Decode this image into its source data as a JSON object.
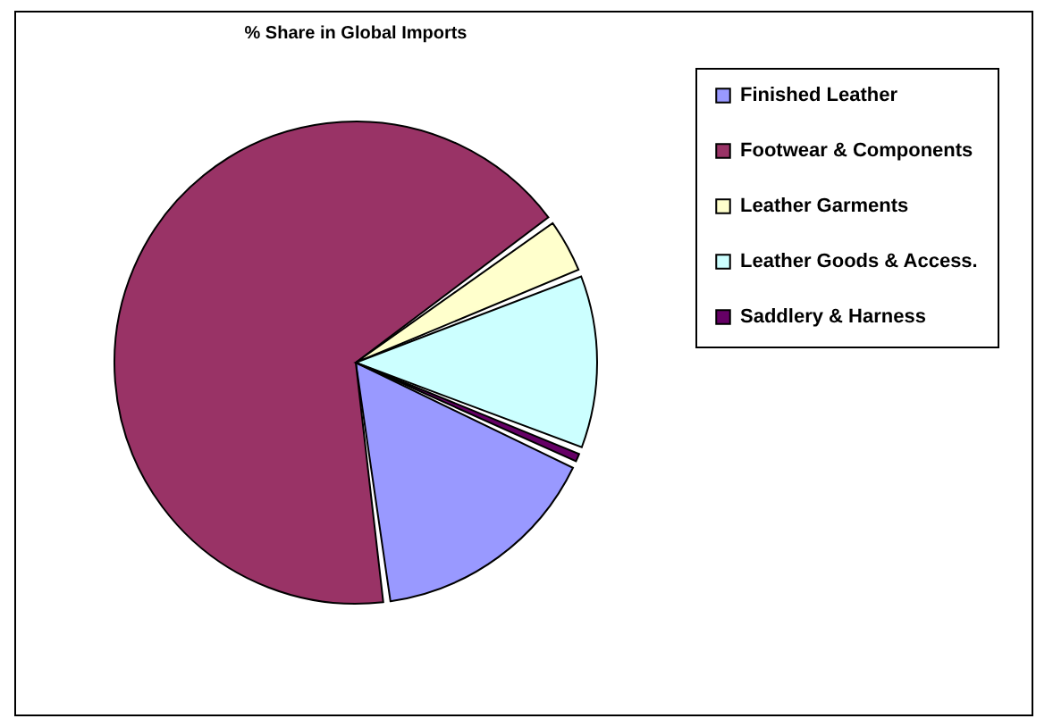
{
  "chart_data": {
    "type": "pie",
    "title": "% Share in Global Imports",
    "categories": [
      "Finished Leather",
      "Footwear & Components",
      "Leather Garments",
      "Leather Goods & Access.",
      "Saddlery & Harness"
    ],
    "values": [
      16,
      67,
      4,
      12,
      1
    ],
    "colors": [
      "#9999ff",
      "#993366",
      "#ffffcc",
      "#ccffff",
      "#660066"
    ],
    "legend": "right"
  }
}
